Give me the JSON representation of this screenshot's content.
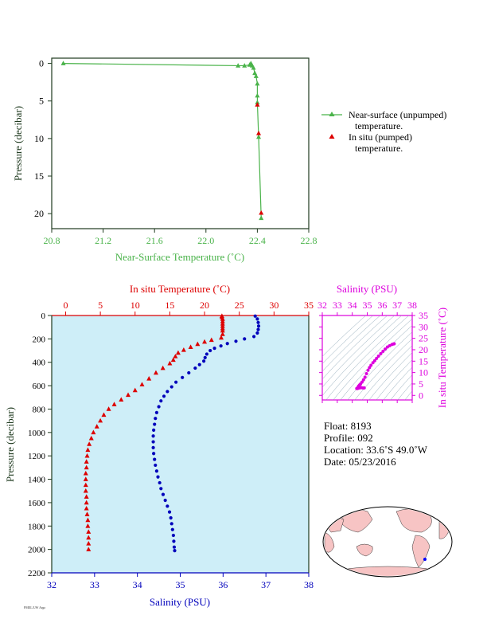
{
  "colors": {
    "surface_line": "#4ab34a",
    "insitu_temp": "#dd0000",
    "salinity": "#0000bb",
    "ts_magenta": "#dd00dd",
    "panel_bg": "#ceeef8",
    "axis_dark": "#1f3a1f"
  },
  "chart_data": [
    {
      "type": "scatter",
      "panel": "near-surface",
      "xlabel": "Near-Surface Temperature (˚C)",
      "ylabel": "Pressure (decibar)",
      "xlim": [
        20.8,
        22.8
      ],
      "ylim": [
        22,
        -0.7
      ],
      "xticks": [
        "20.8",
        "21.2",
        "21.6",
        "22.0",
        "22.4",
        "22.8"
      ],
      "yticks": [
        "0",
        "5",
        "10",
        "15",
        "20"
      ],
      "series": [
        {
          "name": "Near-surface (unpumped) temperature.",
          "marker": "triangle",
          "line": true,
          "points": [
            [
              20.89,
              0.0
            ],
            [
              22.25,
              0.3
            ],
            [
              22.3,
              0.3
            ],
            [
              22.34,
              0.2
            ],
            [
              22.35,
              0.0
            ],
            [
              22.36,
              0.3
            ],
            [
              22.37,
              0.6
            ],
            [
              22.38,
              1.3
            ],
            [
              22.39,
              1.7
            ],
            [
              22.4,
              2.7
            ],
            [
              22.4,
              4.3
            ],
            [
              22.4,
              5.2
            ],
            [
              22.41,
              9.8
            ],
            [
              22.43,
              20.6
            ]
          ]
        },
        {
          "name": "In situ (pumped) temperature.",
          "marker": "triangle",
          "line": false,
          "points": [
            [
              22.4,
              5.5
            ],
            [
              22.41,
              9.3
            ],
            [
              22.43,
              19.9
            ]
          ]
        }
      ],
      "legend": [
        {
          "line1": "Near-surface (unpumped)",
          "line2": "temperature."
        },
        {
          "line1": "In situ (pumped)",
          "line2": "temperature."
        }
      ]
    },
    {
      "type": "scatter",
      "panel": "profile",
      "ylabel": "Pressure (decibar)",
      "ylim": [
        2200,
        0
      ],
      "yticks": [
        "0",
        "200",
        "400",
        "600",
        "800",
        "1000",
        "1200",
        "1400",
        "1600",
        "1800",
        "2000",
        "2200"
      ],
      "temp_axis": {
        "label": "In situ Temperature (˚C)",
        "xlim": [
          -2,
          35
        ],
        "ticks": [
          "0",
          "5",
          "10",
          "15",
          "20",
          "25",
          "30",
          "35"
        ]
      },
      "sal_axis": {
        "label": "Salinity (PSU)",
        "xlim": [
          32,
          38
        ],
        "ticks": [
          "32",
          "33",
          "34",
          "35",
          "36",
          "37",
          "38"
        ]
      },
      "temperature": [
        [
          22.5,
          5
        ],
        [
          22.5,
          15
        ],
        [
          22.6,
          30
        ],
        [
          22.6,
          50
        ],
        [
          22.6,
          70
        ],
        [
          22.6,
          90
        ],
        [
          22.6,
          110
        ],
        [
          22.6,
          130
        ],
        [
          22.6,
          160
        ],
        [
          22.4,
          190
        ],
        [
          21.0,
          210
        ],
        [
          20.0,
          225
        ],
        [
          19.0,
          245
        ],
        [
          18.0,
          270
        ],
        [
          17.0,
          295
        ],
        [
          16.2,
          320
        ],
        [
          15.8,
          350
        ],
        [
          15.5,
          380
        ],
        [
          15.0,
          410
        ],
        [
          14.0,
          450
        ],
        [
          13.0,
          490
        ],
        [
          12.0,
          540
        ],
        [
          11.0,
          590
        ],
        [
          10.0,
          640
        ],
        [
          9.0,
          680
        ],
        [
          8.0,
          720
        ],
        [
          7.0,
          760
        ],
        [
          6.2,
          800
        ],
        [
          5.5,
          850
        ],
        [
          5.0,
          900
        ],
        [
          4.5,
          950
        ],
        [
          4.0,
          1000
        ],
        [
          3.7,
          1050
        ],
        [
          3.4,
          1100
        ],
        [
          3.2,
          1150
        ],
        [
          3.1,
          1200
        ],
        [
          3.0,
          1250
        ],
        [
          3.0,
          1300
        ],
        [
          2.9,
          1350
        ],
        [
          2.9,
          1400
        ],
        [
          2.9,
          1450
        ],
        [
          2.9,
          1500
        ],
        [
          3.0,
          1550
        ],
        [
          3.0,
          1600
        ],
        [
          3.0,
          1650
        ],
        [
          3.1,
          1700
        ],
        [
          3.2,
          1750
        ],
        [
          3.2,
          1800
        ],
        [
          3.3,
          1850
        ],
        [
          3.3,
          1900
        ],
        [
          3.3,
          1950
        ],
        [
          3.3,
          2000
        ]
      ],
      "salinity": [
        [
          36.75,
          5
        ],
        [
          36.8,
          30
        ],
        [
          36.82,
          60
        ],
        [
          36.83,
          90
        ],
        [
          36.82,
          120
        ],
        [
          36.8,
          150
        ],
        [
          36.72,
          180
        ],
        [
          36.5,
          200
        ],
        [
          36.3,
          220
        ],
        [
          36.1,
          240
        ],
        [
          35.95,
          260
        ],
        [
          35.8,
          280
        ],
        [
          35.7,
          300
        ],
        [
          35.62,
          330
        ],
        [
          35.58,
          360
        ],
        [
          35.55,
          390
        ],
        [
          35.45,
          420
        ],
        [
          35.35,
          450
        ],
        [
          35.2,
          490
        ],
        [
          35.05,
          530
        ],
        [
          34.9,
          570
        ],
        [
          34.8,
          610
        ],
        [
          34.7,
          650
        ],
        [
          34.62,
          690
        ],
        [
          34.55,
          730
        ],
        [
          34.5,
          780
        ],
        [
          34.45,
          830
        ],
        [
          34.42,
          880
        ],
        [
          34.4,
          930
        ],
        [
          34.38,
          980
        ],
        [
          34.37,
          1030
        ],
        [
          34.37,
          1080
        ],
        [
          34.37,
          1130
        ],
        [
          34.38,
          1180
        ],
        [
          34.4,
          1230
        ],
        [
          34.42,
          1280
        ],
        [
          34.45,
          1330
        ],
        [
          34.48,
          1380
        ],
        [
          34.52,
          1430
        ],
        [
          34.55,
          1480
        ],
        [
          34.6,
          1530
        ],
        [
          34.65,
          1580
        ],
        [
          34.7,
          1630
        ],
        [
          34.75,
          1680
        ],
        [
          34.78,
          1730
        ],
        [
          34.8,
          1780
        ],
        [
          34.82,
          1830
        ],
        [
          34.84,
          1880
        ],
        [
          34.85,
          1930
        ],
        [
          34.86,
          1980
        ],
        [
          34.87,
          2010
        ]
      ]
    },
    {
      "type": "scatter",
      "panel": "ts-diagram",
      "xlabel": "Salinity (PSU)",
      "ylabel": "In situ Temperature (˚C)",
      "xlim": [
        32,
        38
      ],
      "ylim": [
        -2,
        35
      ],
      "xticks": [
        "32",
        "33",
        "34",
        "35",
        "36",
        "37",
        "38"
      ],
      "yticks": [
        "0",
        "5",
        "10",
        "15",
        "20",
        "25",
        "30",
        "35"
      ],
      "points": [
        [
          34.35,
          3.0
        ],
        [
          34.38,
          3.5
        ],
        [
          34.42,
          4.0
        ],
        [
          34.48,
          4.5
        ],
        [
          34.55,
          5.0
        ],
        [
          34.65,
          5.8
        ],
        [
          34.75,
          6.8
        ],
        [
          34.85,
          8.0
        ],
        [
          34.95,
          9.5
        ],
        [
          35.05,
          11.0
        ],
        [
          35.15,
          12.2
        ],
        [
          35.25,
          13.2
        ],
        [
          35.38,
          14.3
        ],
        [
          35.5,
          15.2
        ],
        [
          35.62,
          16.2
        ],
        [
          35.75,
          17.2
        ],
        [
          35.9,
          18.3
        ],
        [
          36.05,
          19.3
        ],
        [
          36.2,
          20.3
        ],
        [
          36.35,
          21.2
        ],
        [
          36.5,
          21.8
        ],
        [
          36.65,
          22.3
        ],
        [
          36.75,
          22.5
        ],
        [
          36.8,
          22.6
        ],
        [
          34.3,
          3.0
        ],
        [
          34.4,
          3.2
        ],
        [
          34.5,
          3.3
        ],
        [
          34.6,
          3.4
        ],
        [
          34.7,
          3.3
        ],
        [
          34.8,
          3.3
        ]
      ]
    }
  ],
  "info": {
    "float": "Float:  8193",
    "profile": "Profile:  092",
    "location": "Location:  33.6˚S  49.0˚W",
    "date": "Date:  05/23/2016"
  },
  "footer_note": "PMEL/UW Argo"
}
